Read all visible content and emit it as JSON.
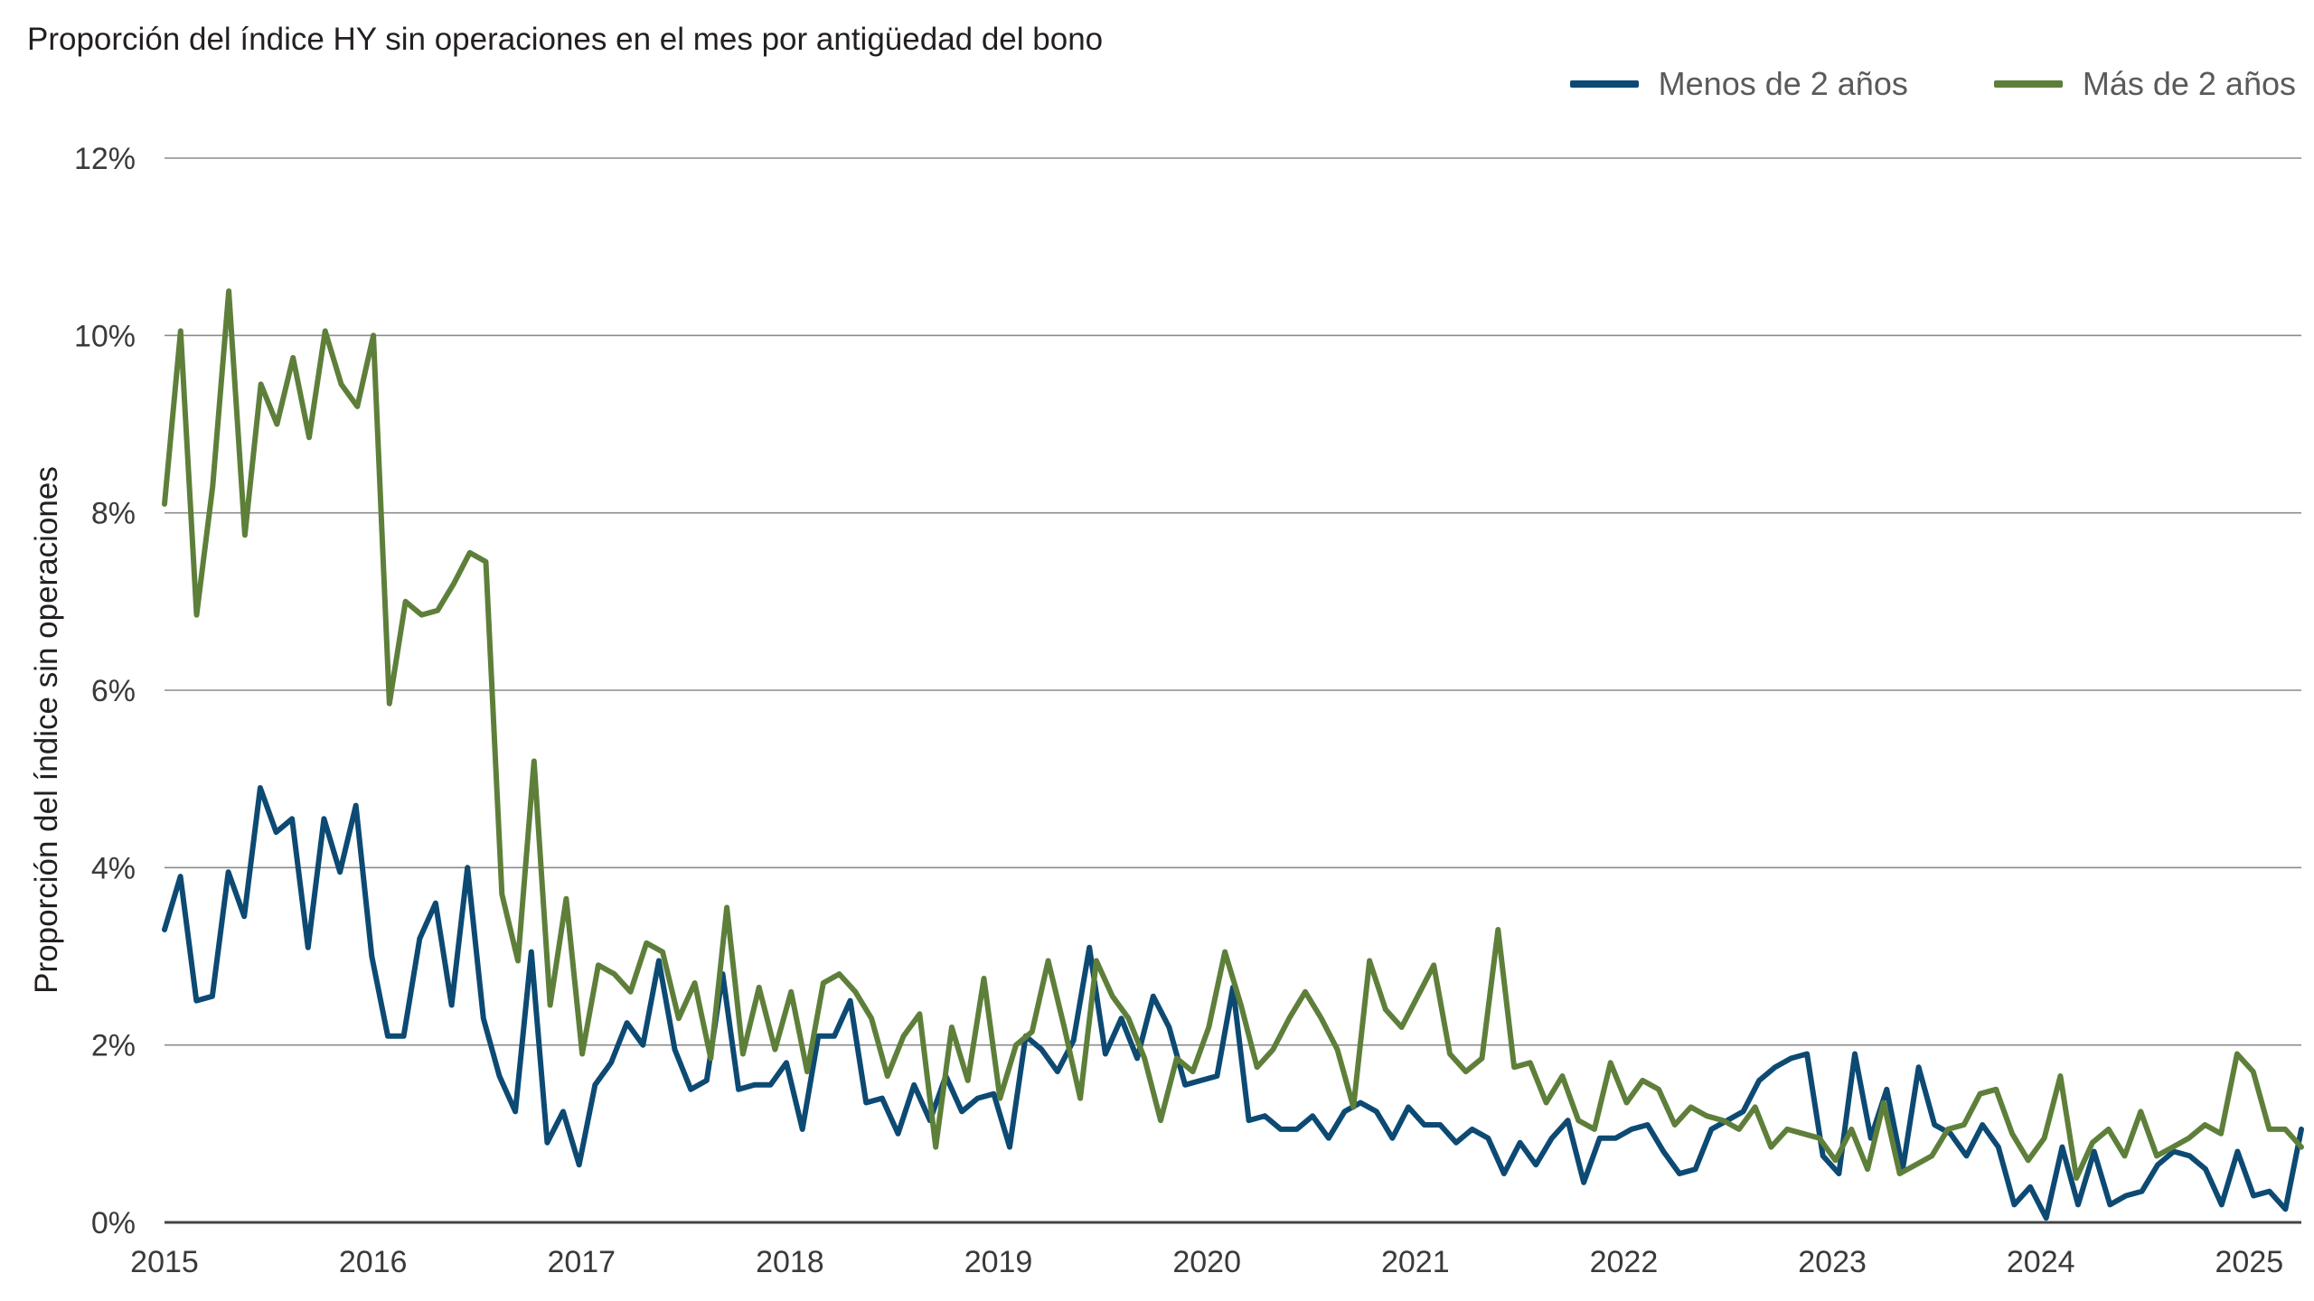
{
  "chart_data": {
    "type": "line",
    "title": "Proporción del índice HY sin operaciones en el mes por antigüedad del bono",
    "xlabel": "",
    "ylabel": "Proporción del índice sin operaciones",
    "ylim": [
      0,
      12
    ],
    "y_ticks": [
      0,
      2,
      4,
      6,
      8,
      10,
      12
    ],
    "y_tick_labels": [
      "0%",
      "2%",
      "4%",
      "6%",
      "8%",
      "10%",
      "12%"
    ],
    "x_tick_labels": [
      "2015",
      "2016",
      "2017",
      "2018",
      "2019",
      "2020",
      "2021",
      "2022",
      "2023",
      "2024",
      "2025"
    ],
    "x_start": "2015-01",
    "frequency": "monthly",
    "grid": true,
    "legend_position": "top-right",
    "series": [
      {
        "name": "Menos de 2 años",
        "color": "#0d4a73",
        "values": [
          3.3,
          3.9,
          2.5,
          2.55,
          3.95,
          3.45,
          4.9,
          4.4,
          4.55,
          3.1,
          4.55,
          3.95,
          4.7,
          3.0,
          2.1,
          2.1,
          3.2,
          3.6,
          2.45,
          4.0,
          2.3,
          1.65,
          1.25,
          3.05,
          0.9,
          1.25,
          0.65,
          1.55,
          1.8,
          2.25,
          2.0,
          2.95,
          1.95,
          1.5,
          1.6,
          2.8,
          1.5,
          1.55,
          1.55,
          1.8,
          1.05,
          2.1,
          2.1,
          2.5,
          1.35,
          1.4,
          1.0,
          1.55,
          1.15,
          1.65,
          1.25,
          1.4,
          1.45,
          0.85,
          2.1,
          1.95,
          1.7,
          2.05,
          3.1,
          1.9,
          2.3,
          1.85,
          2.55,
          2.2,
          1.55,
          1.6,
          1.65,
          2.65,
          1.15,
          1.2,
          1.05,
          1.05,
          1.2,
          0.95,
          1.25,
          1.35,
          1.25,
          0.95,
          1.3,
          1.1,
          1.1,
          0.9,
          1.05,
          0.95,
          0.55,
          0.9,
          0.65,
          0.95,
          1.15,
          0.45,
          0.95,
          0.95,
          1.05,
          1.1,
          0.8,
          0.55,
          0.6,
          1.05,
          1.15,
          1.25,
          1.6,
          1.75,
          1.85,
          1.9,
          0.75,
          0.55,
          1.9,
          0.95,
          1.5,
          0.6,
          1.75,
          1.1,
          1.0,
          0.75,
          1.1,
          0.85,
          0.2,
          0.4,
          0.05,
          0.85,
          0.2,
          0.8,
          0.2,
          0.3,
          0.35,
          0.65,
          0.8,
          0.75,
          0.6,
          0.2,
          0.8,
          0.3,
          0.35,
          0.15,
          1.05
        ]
      },
      {
        "name": "Más de 2 años",
        "color": "#5e7f3a",
        "values": [
          8.1,
          10.05,
          6.85,
          8.3,
          10.5,
          7.75,
          9.45,
          9.0,
          9.75,
          8.85,
          10.05,
          9.45,
          9.2,
          10.0,
          5.85,
          7.0,
          6.85,
          6.9,
          7.2,
          7.55,
          7.45,
          3.7,
          2.95,
          5.2,
          2.45,
          3.65,
          1.9,
          2.9,
          2.8,
          2.6,
          3.15,
          3.05,
          2.3,
          2.7,
          1.85,
          3.55,
          1.9,
          2.65,
          1.95,
          2.6,
          1.7,
          2.7,
          2.8,
          2.6,
          2.3,
          1.65,
          2.1,
          2.35,
          0.85,
          2.2,
          1.6,
          2.75,
          1.4,
          2.0,
          2.15,
          2.95,
          2.2,
          1.4,
          2.95,
          2.55,
          2.3,
          1.85,
          1.15,
          1.85,
          1.7,
          2.2,
          3.05,
          2.45,
          1.75,
          1.95,
          2.3,
          2.6,
          2.3,
          1.95,
          1.3,
          2.95,
          2.4,
          2.2,
          2.55,
          2.9,
          1.9,
          1.7,
          1.85,
          3.3,
          1.75,
          1.8,
          1.35,
          1.65,
          1.15,
          1.05,
          1.8,
          1.35,
          1.6,
          1.5,
          1.1,
          1.3,
          1.2,
          1.15,
          1.05,
          1.3,
          0.85,
          1.05,
          1.0,
          0.95,
          0.7,
          1.05,
          0.6,
          1.35,
          0.55,
          0.65,
          0.75,
          1.05,
          1.1,
          1.45,
          1.5,
          1.0,
          0.7,
          0.95,
          1.65,
          0.5,
          0.9,
          1.05,
          0.75,
          1.25,
          0.75,
          0.85,
          0.95,
          1.1,
          1.0,
          1.9,
          1.7,
          1.05,
          1.05,
          0.85
        ]
      }
    ]
  }
}
